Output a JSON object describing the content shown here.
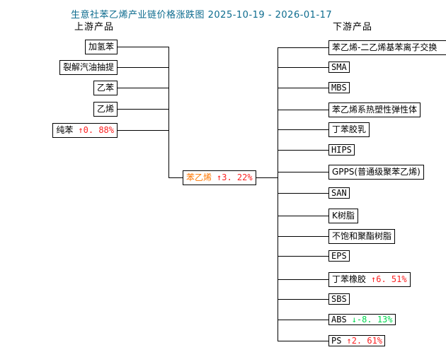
{
  "title": "生意社苯乙烯产业链价格涨跌图 2025-10-19 - 2026-01-17",
  "upstream_label": "上游产品",
  "downstream_label": "下游产品",
  "colors": {
    "title": "#0c6b8e",
    "up": "#fb2222",
    "down": "#00d84e",
    "center_label": "#ff7700",
    "text": "#000000",
    "line": "#000000"
  },
  "center": {
    "label": "苯乙烯",
    "arrow": "↑",
    "change": "3. 22%",
    "direction": "up"
  },
  "upstream": [
    {
      "label": "加氢苯"
    },
    {
      "label": "裂解汽油抽提"
    },
    {
      "label": "乙苯"
    },
    {
      "label": "乙烯"
    },
    {
      "label": "纯苯",
      "arrow": "↑",
      "change": "0. 88%",
      "direction": "up"
    }
  ],
  "downstream": [
    {
      "label": "苯乙烯-二乙烯基苯离子交换"
    },
    {
      "label": "SMA"
    },
    {
      "label": "MBS"
    },
    {
      "label": "苯乙烯系热塑性弹性体"
    },
    {
      "label": "丁苯胶乳"
    },
    {
      "label": "HIPS"
    },
    {
      "label": "GPPS(普通级聚苯乙烯)"
    },
    {
      "label": "SAN"
    },
    {
      "label": "K树脂"
    },
    {
      "label": "不饱和聚酯树脂"
    },
    {
      "label": "EPS"
    },
    {
      "label": "丁苯橡胶",
      "arrow": "↑",
      "change": "6. 51%",
      "direction": "up"
    },
    {
      "label": "SBS"
    },
    {
      "label": "ABS",
      "arrow": "↓",
      "change": "-8. 13%",
      "direction": "down"
    },
    {
      "label": "PS",
      "arrow": "↑",
      "change": "2. 61%",
      "direction": "up"
    }
  ]
}
